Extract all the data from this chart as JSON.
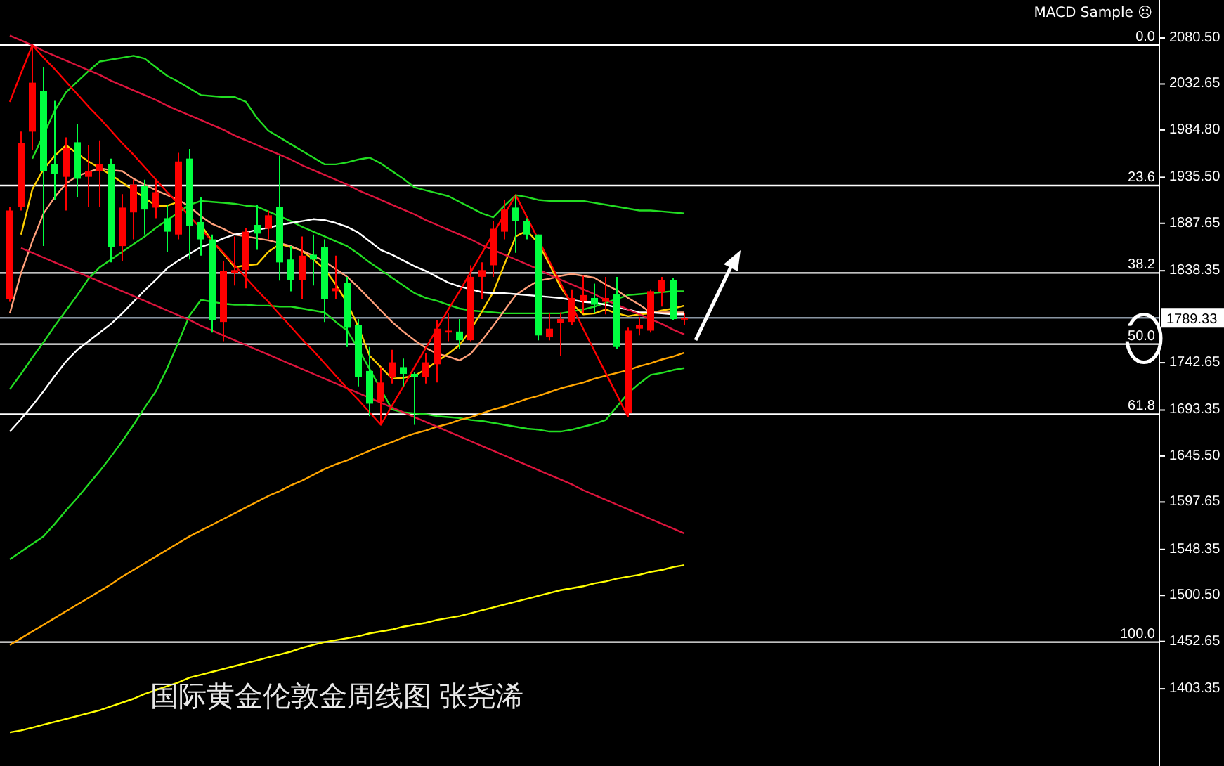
{
  "chart_data": {
    "type": "candlestick",
    "title": "国际黄金伦敦金周线图  张尧浠",
    "annotations": [
      "MACD Sample ☹",
      {
        "text": "0.0",
        "y": 2073
      },
      {
        "text": "23.6",
        "y": 1927
      },
      {
        "text": "38.2",
        "y": 1836
      },
      {
        "text": "50.0",
        "y": 1762
      },
      {
        "text": "61.8",
        "y": 1689
      },
      {
        "text": "100.0",
        "y": 1452
      }
    ],
    "tick_labels": "y",
    "grid": false,
    "ylim": [
      1323,
      2120
    ],
    "yticks": [
      {
        "value": 2080.5,
        "label": "2080.50"
      },
      {
        "value": 2032.65,
        "label": "2032.65"
      },
      {
        "value": 1984.8,
        "label": "1984.80"
      },
      {
        "value": 1935.5,
        "label": "1935.50"
      },
      {
        "value": 1887.65,
        "label": "1887.65"
      },
      {
        "value": 1838.35,
        "label": "1838.35"
      },
      {
        "value": 1742.65,
        "label": "1742.65"
      },
      {
        "value": 1693.35,
        "label": "1693.35"
      },
      {
        "value": 1645.5,
        "label": "1645.50"
      },
      {
        "value": 1597.65,
        "label": "1597.65"
      },
      {
        "value": 1548.35,
        "label": "1548.35"
      },
      {
        "value": 1500.5,
        "label": "1500.50"
      },
      {
        "value": 1452.65,
        "label": "1452.65"
      },
      {
        "value": 1403.35,
        "label": "1403.35"
      }
    ],
    "categories": [
      null,
      null,
      null,
      null,
      null,
      null,
      null,
      null,
      null,
      null,
      null,
      null,
      null,
      null,
      null,
      null,
      null,
      null,
      null,
      null,
      null,
      null,
      null,
      null,
      null,
      null,
      null,
      null,
      null,
      null,
      null,
      null,
      null,
      null,
      null,
      null,
      null,
      null,
      null,
      null,
      null,
      null,
      null,
      null,
      null,
      null,
      null,
      null,
      null,
      null,
      null,
      null,
      null,
      null,
      null,
      null,
      null,
      null,
      null,
      null,
      null
    ],
    "ohlc": [
      [
        1809,
        1905,
        1806,
        1901
      ],
      [
        1905,
        1983,
        1901,
        1971
      ],
      [
        1983,
        2073,
        1964,
        2034
      ],
      [
        2025,
        2050,
        1864,
        1942
      ],
      [
        1949,
        2015,
        1912,
        1939
      ],
      [
        1936,
        1977,
        1901,
        1966
      ],
      [
        1972,
        1991,
        1915,
        1934
      ],
      [
        1936,
        1969,
        1905,
        1942
      ],
      [
        1942,
        1974,
        1905,
        1949
      ],
      [
        1949,
        1955,
        1847,
        1863
      ],
      [
        1864,
        1918,
        1848,
        1904
      ],
      [
        1899,
        1933,
        1871,
        1928
      ],
      [
        1927,
        1933,
        1876,
        1902
      ],
      [
        1904,
        1933,
        1893,
        1920
      ],
      [
        1893,
        1907,
        1858,
        1879
      ],
      [
        1876,
        1961,
        1871,
        1952
      ],
      [
        1955,
        1965,
        1850,
        1885
      ],
      [
        1889,
        1915,
        1854,
        1871
      ],
      [
        1871,
        1876,
        1774,
        1787
      ],
      [
        1785,
        1848,
        1765,
        1838
      ],
      [
        1836,
        1874,
        1823,
        1839
      ],
      [
        1839,
        1883,
        1820,
        1879
      ],
      [
        1886,
        1907,
        1860,
        1877
      ],
      [
        1882,
        1901,
        1871,
        1896
      ],
      [
        1905,
        1958,
        1828,
        1847
      ],
      [
        1850,
        1864,
        1817,
        1829
      ],
      [
        1829,
        1874,
        1809,
        1854
      ],
      [
        1855,
        1876,
        1823,
        1850
      ],
      [
        1863,
        1871,
        1785,
        1809
      ],
      [
        1817,
        1854,
        1809,
        1820
      ],
      [
        1826,
        1832,
        1759,
        1779
      ],
      [
        1782,
        1788,
        1718,
        1728
      ],
      [
        1734,
        1759,
        1687,
        1700
      ],
      [
        1702,
        1738,
        1678,
        1722
      ],
      [
        1728,
        1756,
        1721,
        1743
      ],
      [
        1738,
        1747,
        1718,
        1731
      ],
      [
        1731,
        1733,
        1678,
        1728
      ],
      [
        1728,
        1753,
        1721,
        1743
      ],
      [
        1741,
        1787,
        1722,
        1778
      ],
      [
        1774,
        1794,
        1765,
        1776
      ],
      [
        1775,
        1788,
        1757,
        1766
      ],
      [
        1766,
        1844,
        1765,
        1832
      ],
      [
        1832,
        1847,
        1809,
        1839
      ],
      [
        1844,
        1890,
        1832,
        1882
      ],
      [
        1879,
        1912,
        1871,
        1902
      ],
      [
        1904,
        1917,
        1857,
        1890
      ],
      [
        1890,
        1893,
        1871,
        1876
      ],
      [
        1876,
        1876,
        1766,
        1771
      ],
      [
        1769,
        1794,
        1766,
        1778
      ],
      [
        1784,
        1795,
        1750,
        1788
      ],
      [
        1785,
        1819,
        1782,
        1810
      ],
      [
        1807,
        1833,
        1794,
        1813
      ],
      [
        1810,
        1825,
        1794,
        1803
      ],
      [
        1806,
        1832,
        1793,
        1810
      ],
      [
        1814,
        1832,
        1757,
        1759
      ],
      [
        1690,
        1779,
        1686,
        1776
      ],
      [
        1778,
        1790,
        1771,
        1782
      ],
      [
        1776,
        1819,
        1774,
        1817
      ],
      [
        1816,
        1832,
        1801,
        1829
      ],
      [
        1829,
        1831,
        1787,
        1788
      ],
      [
        1788,
        1794,
        1782,
        1789
      ]
    ],
    "series": [
      {
        "type": "line",
        "color": "#22dd22",
        "values": [
          null,
          null,
          1955,
          1980,
          2005,
          2024,
          2035,
          2046,
          2056,
          2058,
          2060,
          2062,
          2059,
          2050,
          2041,
          2035,
          2028,
          2021,
          2020,
          2019,
          2019,
          2014,
          1997,
          1984,
          1977,
          1970,
          1963,
          1956,
          1949,
          1949,
          1951,
          1954,
          1956,
          1950,
          1942,
          1934,
          1925,
          1922,
          1919,
          1916,
          1910,
          1904,
          1898,
          1894,
          1906,
          1917,
          1915,
          1912,
          1911,
          1911,
          1911,
          1911,
          1909,
          1907,
          1905,
          1903,
          1901,
          1901,
          1900,
          1899,
          1898
        ]
      },
      {
        "type": "line",
        "color": "#22dd22",
        "values": [
          1715,
          1731,
          1748,
          1764,
          1781,
          1797,
          1813,
          1830,
          1842,
          1850,
          1858,
          1866,
          1874,
          1883,
          1891,
          1899,
          1907,
          1911,
          1910,
          1909,
          1908,
          1906,
          1905,
          1900,
          1895,
          1890,
          1884,
          1879,
          1874,
          1869,
          1864,
          1856,
          1847,
          1839,
          1831,
          1823,
          1815,
          1810,
          1807,
          1803,
          1799,
          1797,
          1796,
          1795,
          1794,
          1794,
          1794,
          1794,
          1794,
          1794,
          1796,
          1798,
          1801,
          1805,
          1809,
          1813,
          1814,
          1815,
          1816,
          1817,
          1817
        ]
      },
      {
        "type": "line",
        "color": "#22dd22",
        "values": [
          1538,
          1546,
          1554,
          1562,
          1575,
          1589,
          1602,
          1616,
          1630,
          1645,
          1661,
          1678,
          1696,
          1713,
          1737,
          1764,
          1792,
          1808,
          1806,
          1804,
          1803,
          1803,
          1802,
          1802,
          1801,
          1801,
          1799,
          1797,
          1795,
          1785,
          1776,
          1757,
          1736,
          1715,
          1694,
          1691,
          1690,
          1689,
          1687,
          1686,
          1685,
          1683,
          1682,
          1680,
          1678,
          1676,
          1674,
          1673,
          1671,
          1671,
          1673,
          1676,
          1679,
          1683,
          1697,
          1711,
          1721,
          1730,
          1732,
          1735,
          1737
        ]
      },
      {
        "type": "line",
        "color": "#ffd000",
        "values": [
          null,
          1876,
          1923,
          1944,
          1958,
          1969,
          1960,
          1952,
          1945,
          1938,
          1930,
          1922,
          1914,
          1906,
          1906,
          1910,
          null,
          1886,
          1869,
          1856,
          1842,
          1844,
          1845,
          1858,
          1866,
          1863,
          1859,
          1850,
          1840,
          1824,
          1805,
          1780,
          1750,
          1738,
          1726,
          1727,
          1729,
          1736,
          1744,
          1752,
          1761,
          1777,
          1796,
          1816,
          1845,
          1874,
          1880,
          1867,
          1845,
          1821,
          1804,
          1793,
          1794,
          1798,
          1794,
          1791,
          1793,
          1794,
          1797,
          1799,
          1802
        ]
      },
      {
        "type": "line",
        "color": "#ffa07a",
        "values": [
          1794,
          1836,
          1869,
          1898,
          1915,
          1929,
          1937,
          1941,
          1945,
          1943,
          1942,
          1934,
          1928,
          1922,
          1917,
          1912,
          1905,
          1895,
          1887,
          1882,
          1876,
          1874,
          1872,
          1870,
          1867,
          1864,
          1859,
          1854,
          1848,
          1840,
          1832,
          1821,
          1809,
          1797,
          1785,
          1775,
          1766,
          1758,
          1752,
          1749,
          1745,
          1752,
          1766,
          1781,
          1797,
          1813,
          1821,
          1828,
          1830,
          1833,
          1835,
          1833,
          1831,
          1824,
          1818,
          1810,
          1803,
          1795,
          1795,
          1795,
          1795
        ]
      },
      {
        "type": "line",
        "color": "#ffffff",
        "values": [
          1671,
          1684,
          1698,
          1713,
          1729,
          1744,
          1756,
          1765,
          1774,
          1783,
          1794,
          1806,
          1818,
          1829,
          1841,
          1849,
          1856,
          1863,
          1867,
          1872,
          1876,
          1878,
          1881,
          1883,
          1886,
          1888,
          1890,
          1892,
          1891,
          1888,
          1884,
          1878,
          1869,
          1860,
          1855,
          1849,
          1843,
          1838,
          1832,
          1826,
          1822,
          1819,
          1816,
          1815,
          1815,
          1814,
          1813,
          1812,
          1811,
          1810,
          1808,
          1806,
          1805,
          1803,
          1800,
          1798,
          1795,
          1795,
          1794,
          1793,
          1793
        ]
      },
      {
        "type": "line",
        "color": "#ffa500",
        "values": [
          1449,
          1456,
          1463,
          1470,
          1477,
          1484,
          1491,
          1498,
          1505,
          1512,
          1520,
          1527,
          1534,
          1541,
          1548,
          1555,
          1562,
          1568,
          1574,
          1580,
          1586,
          1592,
          1598,
          1604,
          1609,
          1615,
          1620,
          1626,
          1632,
          1637,
          1641,
          1646,
          1651,
          1656,
          1660,
          1665,
          1669,
          1672,
          1676,
          1679,
          1683,
          1686,
          1690,
          1694,
          1697,
          1701,
          1705,
          1708,
          1712,
          1716,
          1719,
          1722,
          1726,
          1729,
          1732,
          1735,
          1739,
          1742,
          1746,
          1749,
          1753
        ]
      },
      {
        "type": "line",
        "color": "#ffff00",
        "values": [
          1358,
          1360,
          1363,
          1366,
          1369,
          1372,
          1375,
          1378,
          1381,
          1385,
          1389,
          1393,
          1398,
          1402,
          1406,
          1410,
          1415,
          1418,
          1421,
          1424,
          1427,
          1430,
          1433,
          1436,
          1439,
          1442,
          1446,
          1449,
          1452,
          1454,
          1456,
          1458,
          1461,
          1463,
          1465,
          1468,
          1470,
          1472,
          1475,
          1477,
          1479,
          1482,
          1485,
          1488,
          1491,
          1494,
          1497,
          1500,
          1503,
          1506,
          1508,
          1510,
          1513,
          1515,
          1518,
          1520,
          1522,
          1525,
          1527,
          1530,
          1532
        ]
      },
      {
        "type": "line",
        "color": "#dc143c",
        "values": [
          2083,
          2078,
          2073,
          2067,
          2062,
          2057,
          2052,
          2047,
          2042,
          2036,
          2031,
          2026,
          2021,
          2016,
          2010,
          2005,
          2000,
          1995,
          1990,
          1985,
          1979,
          1974,
          1969,
          1964,
          1959,
          1954,
          1948,
          1943,
          1938,
          1933,
          1928,
          1922,
          1917,
          1912,
          1907,
          1902,
          1897,
          1891,
          1886,
          1881,
          1876,
          1871,
          1865,
          1860,
          1855,
          1850,
          1845,
          1840,
          1834,
          1829,
          1824,
          1819,
          1814,
          1808,
          1803,
          1798,
          1793,
          1788,
          1783,
          1777,
          1772
        ]
      },
      {
        "type": "line",
        "color": "#dc143c",
        "values": [
          null,
          1862,
          1857,
          1852,
          1847,
          1842,
          1837,
          1832,
          1827,
          1822,
          1817,
          1812,
          1807,
          1802,
          1797,
          1792,
          1787,
          1781,
          1776,
          1771,
          1766,
          1761,
          1756,
          1751,
          1746,
          1741,
          1736,
          1731,
          1726,
          1721,
          1716,
          1711,
          1706,
          1701,
          1696,
          1691,
          1686,
          1681,
          1676,
          1671,
          1666,
          1661,
          1656,
          1651,
          1646,
          1641,
          1636,
          1631,
          1626,
          1621,
          1616,
          1610,
          1605,
          1600,
          1595,
          1590,
          1585,
          1580,
          1575,
          1570,
          1565
        ]
      },
      {
        "type": "line",
        "color": "#ff0000",
        "values": [
          2014,
          2044,
          2073,
          2060,
          2048,
          2035,
          2022,
          2009,
          1997,
          1984,
          1971,
          1959,
          1946,
          1933,
          1920,
          1908,
          1895,
          1882,
          1869,
          1857,
          1844,
          1831,
          1818,
          1806,
          1793,
          1780,
          1767,
          1755,
          1742,
          1729,
          1716,
          1704,
          1691,
          1678,
          1698,
          1718,
          1738,
          1758,
          1778,
          1798,
          1817,
          1837,
          1857,
          1877,
          1897,
          1917,
          1894,
          1871,
          1848,
          1825,
          1802,
          1778,
          1755,
          1732,
          1709,
          1686,
          null,
          null,
          null,
          null,
          null
        ]
      }
    ],
    "ref_lines": [
      {
        "axis": "y",
        "value": 2073,
        "color": "#ffffff"
      },
      {
        "axis": "y",
        "value": 1927,
        "color": "#ffffff"
      },
      {
        "axis": "y",
        "value": 1836,
        "color": "#ffffff"
      },
      {
        "axis": "y",
        "value": 1762,
        "color": "#ffffff"
      },
      {
        "axis": "y",
        "value": 1689,
        "color": "#ffffff"
      },
      {
        "axis": "y",
        "value": 1452,
        "color": "#ffffff"
      },
      {
        "axis": "y",
        "value": 1789.33,
        "label": "1789.33",
        "color": "#8a96a3"
      }
    ]
  }
}
